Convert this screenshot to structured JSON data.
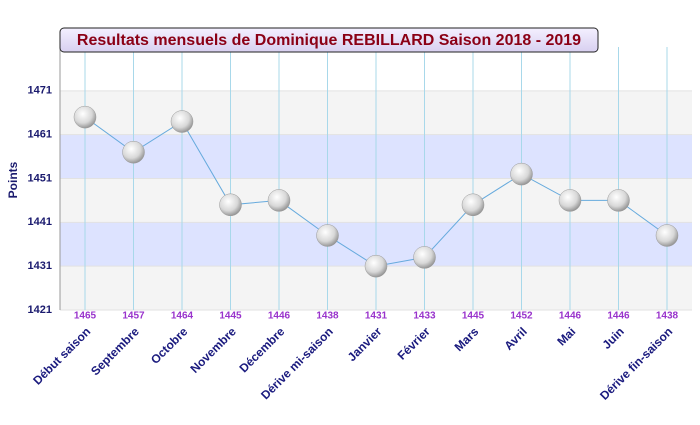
{
  "chart_data": {
    "type": "line",
    "title": "Resultats mensuels de Dominique REBILLARD Saison 2018 - 2019",
    "y_label": "Points",
    "categories": [
      "Début saison",
      "Septembre",
      "Octobre",
      "Novembre",
      "Décembre",
      "Dérive mi-saison",
      "Janvier",
      "Février",
      "Mars",
      "Avril",
      "Mai",
      "Juin",
      "Dérive fin-saison"
    ],
    "series": [
      {
        "name": "Points",
        "color": "#66aadd",
        "values": [
          1465,
          1457,
          1464,
          1445,
          1446,
          1438,
          1431,
          1433,
          1445,
          1452,
          1446,
          1446,
          1438
        ]
      }
    ],
    "ylim": [
      1421,
      1481
    ],
    "yticks": [
      1421,
      1431,
      1441,
      1451,
      1461,
      1471
    ],
    "grid": true
  }
}
